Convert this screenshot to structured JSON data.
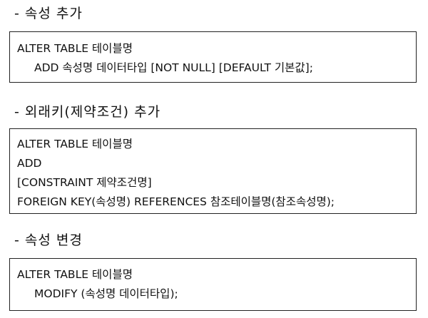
{
  "sections": [
    {
      "heading": "- 속성 추가",
      "lines": [
        "ALTER TABLE 테이블명",
        "ADD 속성명 데이터타입 [NOT NULL] [DEFAULT 기본값];"
      ]
    },
    {
      "heading": "- 외래키(제약조건) 추가",
      "lines": [
        "ALTER TABLE 테이블명",
        "ADD",
        "[CONSTRAINT 제약조건명]",
        "FOREIGN KEY(속성명) REFERENCES 참조테이블명(참조속성명);"
      ]
    },
    {
      "heading": "- 속성 변경",
      "lines": [
        "ALTER TABLE 테이블명",
        "MODIFY (속성명 데이터타입);"
      ]
    }
  ]
}
